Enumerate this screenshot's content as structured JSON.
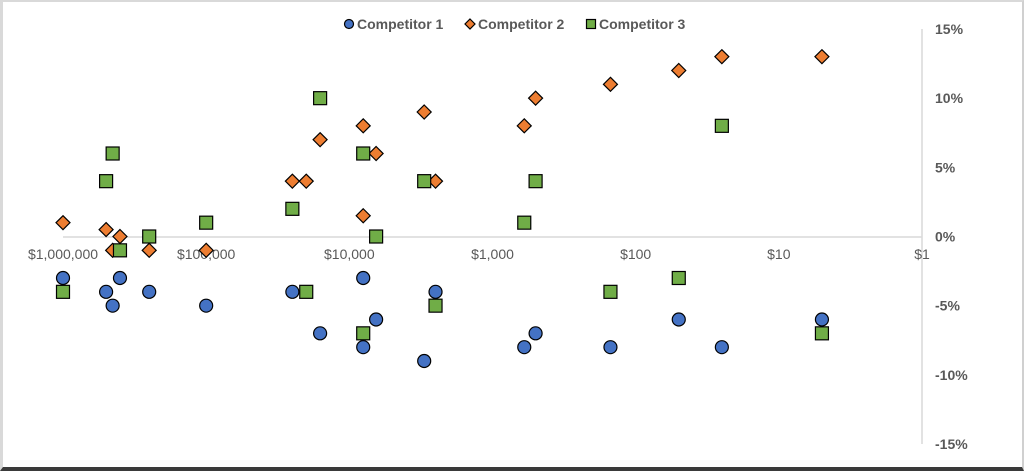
{
  "chart_data": {
    "type": "scatter",
    "title": "",
    "xlabel": "",
    "ylabel": "",
    "x_scale": "log",
    "x_reversed": true,
    "xlim": [
      1000000,
      1
    ],
    "ylim": [
      -0.15,
      0.15
    ],
    "grid": false,
    "legend_position": "top",
    "x_tick_labels": [
      "$1,000,000",
      "$100,000",
      "$10,000",
      "$1,000",
      "$100",
      "$10",
      "$1"
    ],
    "x_tick_values": [
      1000000,
      100000,
      10000,
      1000,
      100,
      10,
      1
    ],
    "y_tick_labels": [
      "15%",
      "10%",
      "5%",
      "0%",
      "-5%",
      "-10%",
      "-15%"
    ],
    "y_tick_values": [
      0.15,
      0.1,
      0.05,
      0,
      -0.05,
      -0.1,
      -0.15
    ],
    "series": [
      {
        "name": "Competitor 1",
        "marker": "circle",
        "color": "#4472C4",
        "points": [
          {
            "x": 1000000,
            "y": -0.03
          },
          {
            "x": 500000,
            "y": -0.04
          },
          {
            "x": 450000,
            "y": -0.05
          },
          {
            "x": 400000,
            "y": -0.03
          },
          {
            "x": 250000,
            "y": -0.04
          },
          {
            "x": 100000,
            "y": -0.05
          },
          {
            "x": 25000,
            "y": -0.04
          },
          {
            "x": 16000,
            "y": -0.07
          },
          {
            "x": 8000,
            "y": -0.03
          },
          {
            "x": 8000,
            "y": -0.08
          },
          {
            "x": 6500,
            "y": -0.06
          },
          {
            "x": 3000,
            "y": -0.09
          },
          {
            "x": 2500,
            "y": -0.04
          },
          {
            "x": 600,
            "y": -0.08
          },
          {
            "x": 500,
            "y": -0.07
          },
          {
            "x": 150,
            "y": -0.08
          },
          {
            "x": 50,
            "y": -0.06
          },
          {
            "x": 25,
            "y": -0.08
          },
          {
            "x": 5,
            "y": -0.06
          }
        ]
      },
      {
        "name": "Competitor 2",
        "marker": "diamond",
        "color": "#ED7D31",
        "points": [
          {
            "x": 1000000,
            "y": 0.01
          },
          {
            "x": 500000,
            "y": 0.005
          },
          {
            "x": 450000,
            "y": -0.01
          },
          {
            "x": 400000,
            "y": 0.0
          },
          {
            "x": 250000,
            "y": -0.01
          },
          {
            "x": 100000,
            "y": -0.01
          },
          {
            "x": 25000,
            "y": 0.04
          },
          {
            "x": 20000,
            "y": 0.04
          },
          {
            "x": 16000,
            "y": 0.07
          },
          {
            "x": 8000,
            "y": 0.08
          },
          {
            "x": 8000,
            "y": 0.015
          },
          {
            "x": 6500,
            "y": 0.06
          },
          {
            "x": 3000,
            "y": 0.09
          },
          {
            "x": 2500,
            "y": 0.04
          },
          {
            "x": 600,
            "y": 0.08
          },
          {
            "x": 500,
            "y": 0.1
          },
          {
            "x": 150,
            "y": 0.11
          },
          {
            "x": 50,
            "y": 0.12
          },
          {
            "x": 25,
            "y": 0.13
          },
          {
            "x": 5,
            "y": 0.13
          }
        ]
      },
      {
        "name": "Competitor 3",
        "marker": "square",
        "color": "#70AD47",
        "points": [
          {
            "x": 1000000,
            "y": -0.04
          },
          {
            "x": 500000,
            "y": 0.04
          },
          {
            "x": 450000,
            "y": 0.06
          },
          {
            "x": 400000,
            "y": -0.01
          },
          {
            "x": 250000,
            "y": 0.0
          },
          {
            "x": 100000,
            "y": 0.01
          },
          {
            "x": 25000,
            "y": 0.02
          },
          {
            "x": 20000,
            "y": -0.04
          },
          {
            "x": 16000,
            "y": 0.1
          },
          {
            "x": 8000,
            "y": 0.06
          },
          {
            "x": 8000,
            "y": -0.07
          },
          {
            "x": 6500,
            "y": 0.0
          },
          {
            "x": 3000,
            "y": 0.04
          },
          {
            "x": 2500,
            "y": -0.05
          },
          {
            "x": 600,
            "y": 0.01
          },
          {
            "x": 500,
            "y": 0.04
          },
          {
            "x": 150,
            "y": -0.04
          },
          {
            "x": 50,
            "y": -0.03
          },
          {
            "x": 25,
            "y": 0.08
          },
          {
            "x": 5,
            "y": -0.07
          }
        ]
      }
    ]
  },
  "legend": {
    "items": [
      {
        "label": "Competitor 1",
        "marker": "circle",
        "color": "#4472C4"
      },
      {
        "label": "Competitor 2",
        "marker": "diamond",
        "color": "#ED7D31"
      },
      {
        "label": "Competitor 3",
        "marker": "square",
        "color": "#70AD47"
      }
    ]
  },
  "style": {
    "axis_color": "#d9d9d9",
    "marker_stroke": "#000000",
    "text_color": "#595959"
  }
}
